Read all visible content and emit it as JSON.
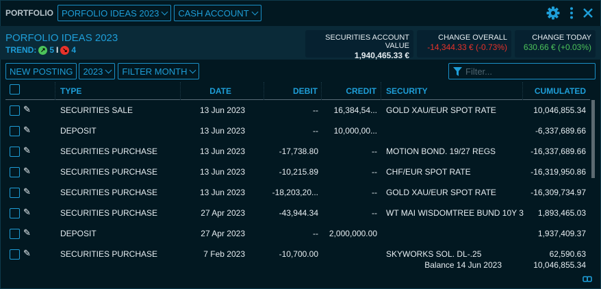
{
  "topbar": {
    "label": "PORTFOLIO",
    "portfolio_select": "PORFOLIO IDEAS 2023",
    "account_select": "CASH ACCOUNT"
  },
  "icons": {
    "settings": "gear-icon",
    "more": "kebab-icon",
    "close": "close-icon"
  },
  "summary": {
    "title": "PORFOLIO IDEAS 2023",
    "trend_label": "TREND:",
    "trend_up": "5",
    "trend_sep": "I",
    "trend_down": "4",
    "account_value_label": "SECURITIES ACCOUNT VALUE",
    "account_value": "1,940,465.33 €",
    "change_overall_label": "CHANGE OVERALL",
    "change_overall": "-14,344.33 € (-0.73%)",
    "change_today_label": "CHANGE TODAY",
    "change_today": "630.66 € (+0.03%)"
  },
  "colors": {
    "accent": "#1e9ed8",
    "negative": "#e8322a",
    "positive": "#4cc35a",
    "background": "#021821"
  },
  "toolbar": {
    "new_posting": "NEW POSTING",
    "year": "2023",
    "month": "FILTER MONTH",
    "filter_placeholder": "Filter..."
  },
  "table": {
    "headers": [
      "TYPE",
      "DATE",
      "DEBIT",
      "CREDIT",
      "SECURITY",
      "CUMULATED"
    ],
    "rows": [
      [
        "SECURITIES SALE",
        "13 Jun 2023",
        "--",
        "16,384,54...",
        "GOLD XAU/EUR SPOT RATE",
        "10,046,855.34"
      ],
      [
        "DEPOSIT",
        "13 Jun 2023",
        "--",
        "10,000,00...",
        "",
        "-6,337,689.66"
      ],
      [
        "SECURITIES PURCHASE",
        "13 Jun 2023",
        "-17,738.80",
        "--",
        "MOTION BOND. 19/27 REGS",
        "-16,337,689.66"
      ],
      [
        "SECURITIES PURCHASE",
        "13 Jun 2023",
        "-10,215.89",
        "--",
        "CHF/EUR SPOT RATE",
        "-16,319,950.86"
      ],
      [
        "SECURITIES PURCHASE",
        "13 Jun 2023",
        "-18,203,20...",
        "--",
        "GOLD XAU/EUR SPOT RATE",
        "-16,309,734.97"
      ],
      [
        "SECURITIES PURCHASE",
        "27 Apr 2023",
        "-43,944.34",
        "--",
        "WT MAI WISDOMTREE BUND 10Y 3",
        "1,893,465.03"
      ],
      [
        "DEPOSIT",
        "27 Apr 2023",
        "--",
        "2,000,000.00",
        "",
        "1,937,409.37"
      ],
      [
        "SECURITIES PURCHASE",
        "7 Feb 2023",
        "-10,700.00",
        "",
        "SKYWORKS SOL. DL-.25",
        "62,590.63"
      ]
    ]
  },
  "footer": {
    "balance_label": "Balance 14 Jun 2023",
    "balance_value": "10,046,855.34"
  }
}
